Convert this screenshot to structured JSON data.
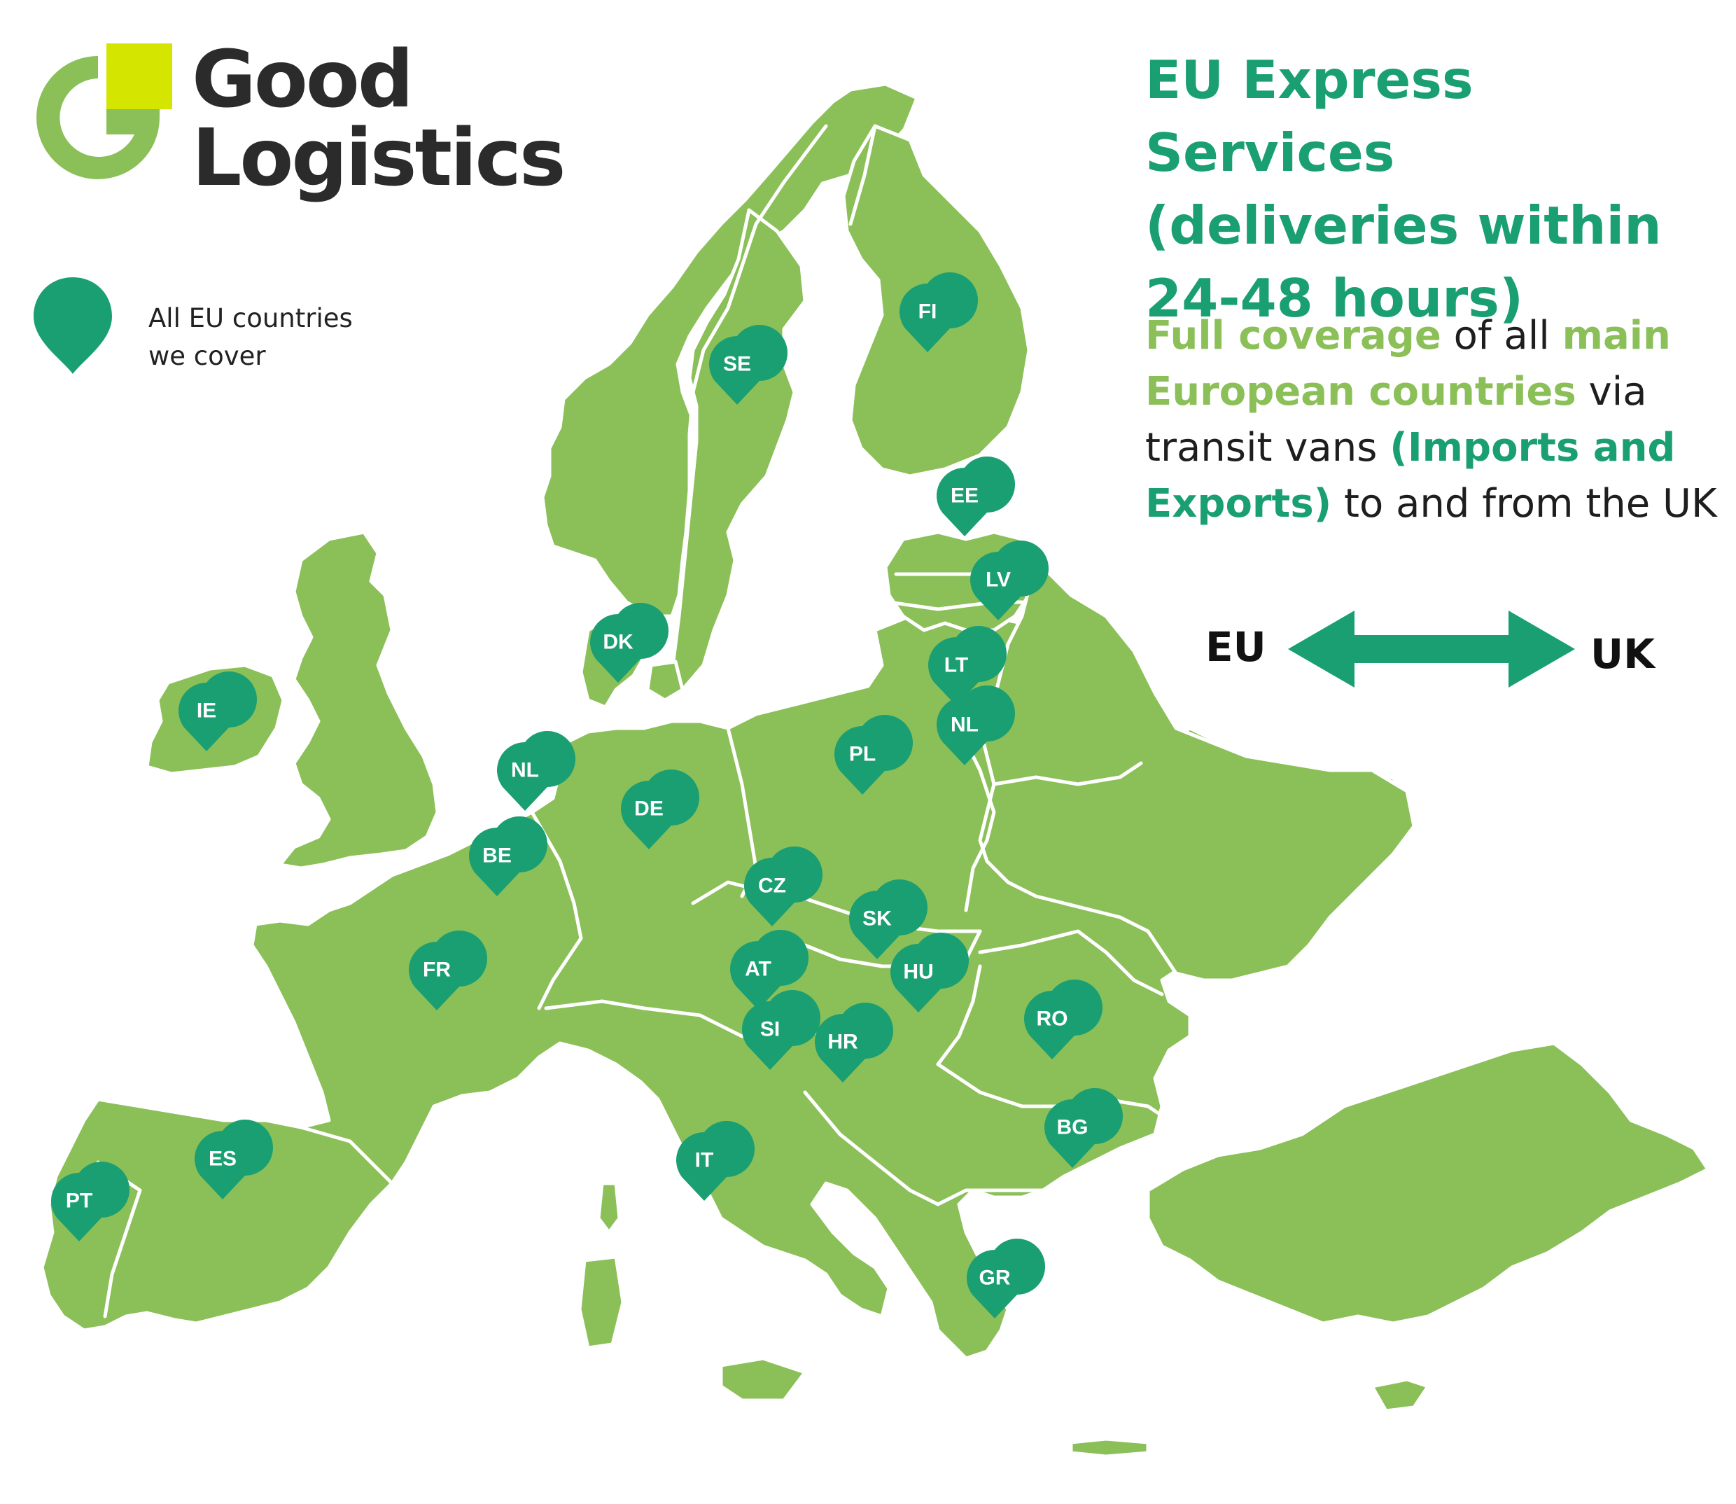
{
  "brand": {
    "name_line1": "Good",
    "name_line2": "Logistics",
    "colors": {
      "mark_green": "#8bbf58",
      "mark_yellow": "#d4e600",
      "text": "#2b2b2b"
    }
  },
  "legend": {
    "icon": "map-pin-icon",
    "text": "All EU countries\nwe cover"
  },
  "title": "EU Express Services\n(deliveries within\n24-48 hours)",
  "description": {
    "highlight_1": "Full coverage",
    "text_1": " of all ",
    "highlight_2": "main European countries",
    "text_2": " via transit vans ",
    "highlight_3": "(Imports and Exports)",
    "text_3": " to and from the UK"
  },
  "route": {
    "from": "EU",
    "to": "UK",
    "arrow_icon": "double-arrow-icon"
  },
  "colors": {
    "land": "#8bbf58",
    "pin": "#1a9f72",
    "accent_dark": "#1a9f72",
    "accent_light": "#8bbf58",
    "background": "#ffffff"
  },
  "map": {
    "pins": [
      {
        "code": "FI"
      },
      {
        "code": "SE"
      },
      {
        "code": "EE"
      },
      {
        "code": "LV"
      },
      {
        "code": "DK"
      },
      {
        "code": "LT"
      },
      {
        "code": "IE"
      },
      {
        "code": "NL"
      },
      {
        "code": "PL"
      },
      {
        "code": "NL"
      },
      {
        "code": "DE"
      },
      {
        "code": "BE"
      },
      {
        "code": "CZ"
      },
      {
        "code": "SK"
      },
      {
        "code": "FR"
      },
      {
        "code": "AT"
      },
      {
        "code": "HU"
      },
      {
        "code": "SI"
      },
      {
        "code": "HR"
      },
      {
        "code": "RO"
      },
      {
        "code": "BG"
      },
      {
        "code": "IT"
      },
      {
        "code": "ES"
      },
      {
        "code": "PT"
      },
      {
        "code": "GR"
      }
    ]
  }
}
